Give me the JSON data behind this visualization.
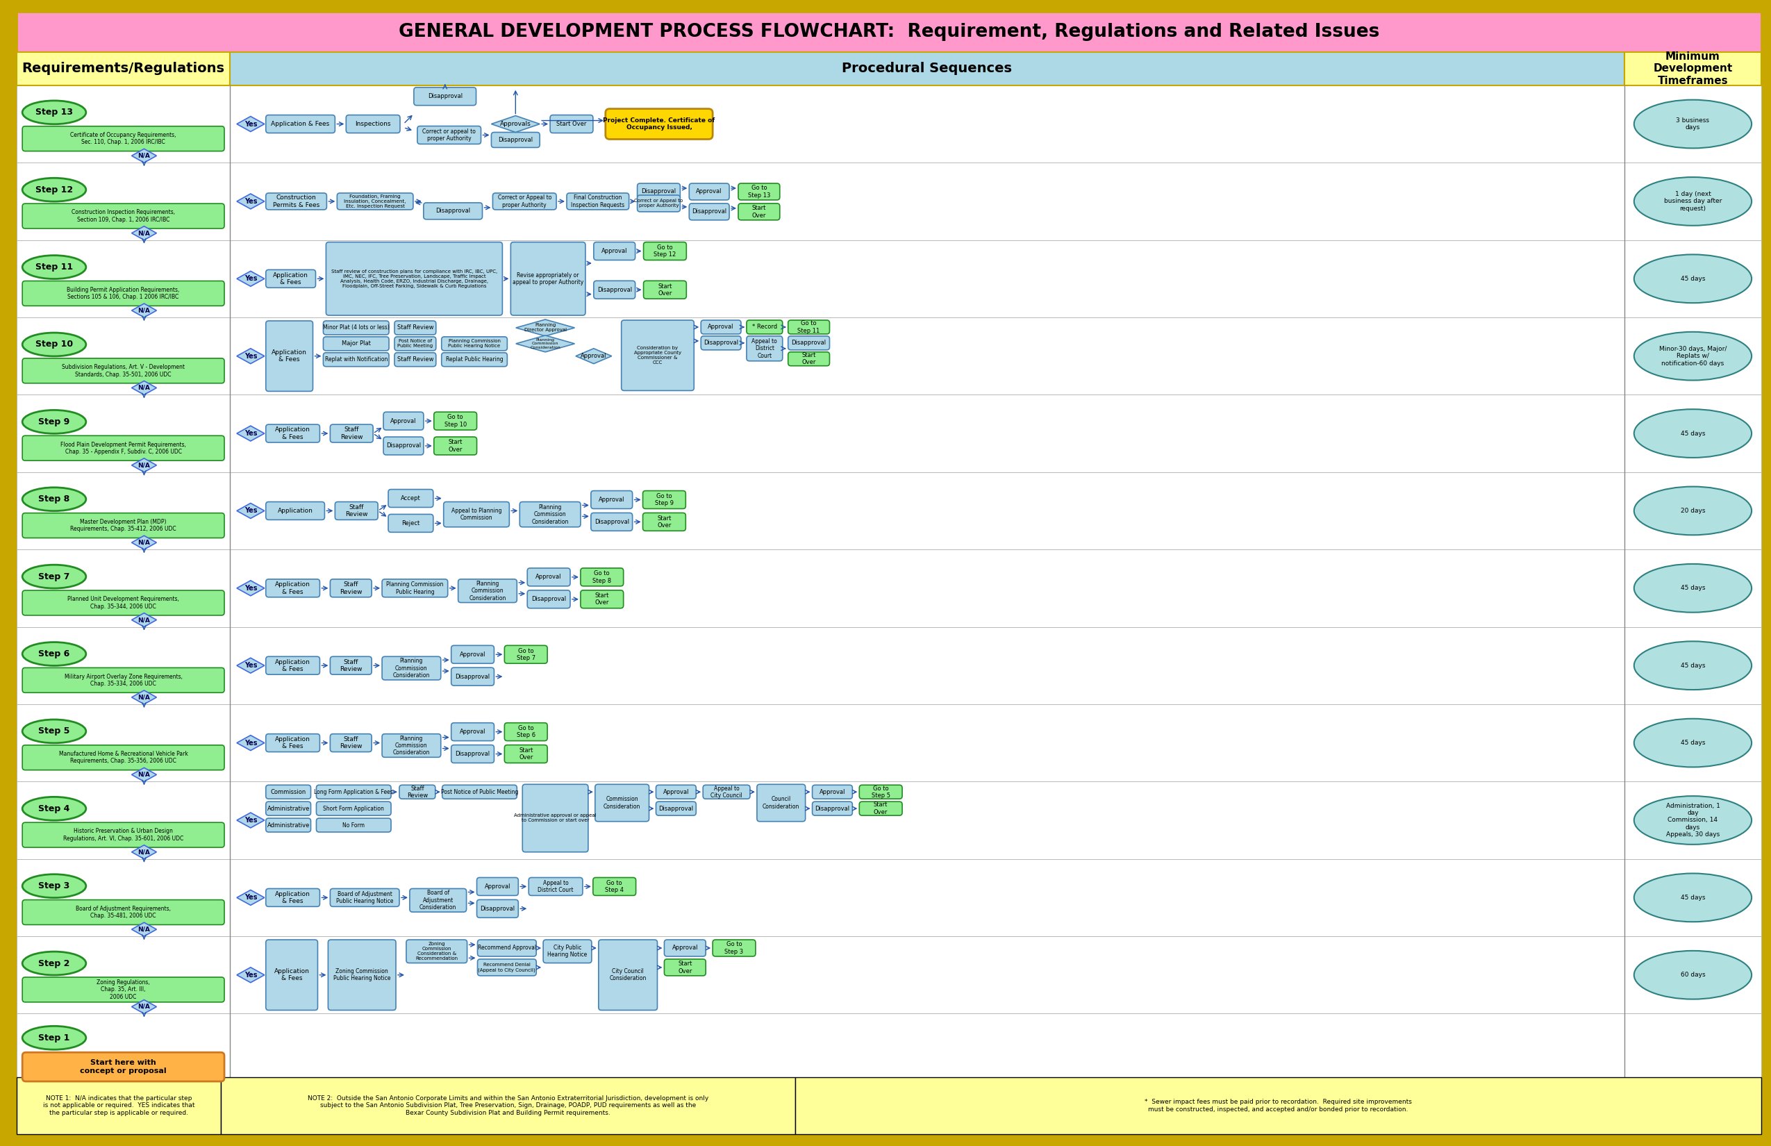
{
  "title": "GENERAL DEVELOPMENT PROCESS FLOWCHART:  Requirement, Regulations and Related Issues",
  "title_bg": "#FF99CC",
  "outer_border": "#C8A800",
  "header_bg_left": "#FFFF99",
  "header_bg_mid": "#ADD8E6",
  "header_bg_right": "#FFFF99",
  "col1_header": "Requirements/Regulations",
  "col2_header": "Procedural Sequences",
  "col3_header": "Minimum\nDevelopment\nTimeframes",
  "step_fill": "#90EE90",
  "step_border": "#228B22",
  "green_fill": "#90EE90",
  "green_border": "#228B22",
  "blue_fill": "#B0D8E8",
  "blue_border": "#4682B4",
  "req_fill": "#90EE90",
  "req_border": "#228B22",
  "orange_fill": "#FFB347",
  "orange_border": "#CC7722",
  "gold_fill": "#FFD700",
  "gold_border": "#B8860B",
  "time_fill": "#B0E0E0",
  "time_border": "#2F8080",
  "na_fill": "#B0D8E8",
  "na_border": "#4169E1",
  "yes_fill": "#B0D8E8",
  "yes_border": "#4169E1",
  "arrow_color": "#2255AA",
  "note_bg": "#FFFF99",
  "steps": [
    {
      "num": 13,
      "req": "Certificate of Occupancy Requirements,\nSec. 110, Chap. 1, 2006 IRC/IBC",
      "time": "3 business\ndays"
    },
    {
      "num": 12,
      "req": "Construction Inspection Requirements,\nSection 109, Chap. 1, 2006 IRC/IBC",
      "time": "1 day (next\nbusiness day after\nrequest)"
    },
    {
      "num": 11,
      "req": "Building Permit Application Requirements,\nSections 105 & 106, Chap. 1 2006 IRC/IBC",
      "time": "45 days"
    },
    {
      "num": 10,
      "req": "Subdivision Regulations, Art. V - Development\nStandards, Chap. 35-501, 2006 UDC",
      "time": "Minor-30 days, Major/\nReplats w/\nnotification-60 days"
    },
    {
      "num": 9,
      "req": "Flood Plain Development Permit Requirements,\nChap. 35 - Appendix F, Subdiv. C, 2006 UDC",
      "time": "45 days"
    },
    {
      "num": 8,
      "req": "Master Development Plan (MDP)\nRequirements, Chap. 35-412, 2006 UDC",
      "time": "20 days"
    },
    {
      "num": 7,
      "req": "Planned Unit Development Requirements,\nChap. 35-344, 2006 UDC",
      "time": "45 days"
    },
    {
      "num": 6,
      "req": "Military Airport Overlay Zone Requirements,\nChap. 35-334, 2006 UDC",
      "time": "45 days"
    },
    {
      "num": 5,
      "req": "Manufactured Home & Recreational Vehicle Park\nRequirements, Chap. 35-356, 2006 UDC",
      "time": "45 days"
    },
    {
      "num": 4,
      "req": "Historic Preservation & Urban Design\nRegulations, Art. VI, Chap. 35-601, 2006 UDC",
      "time": "Administration, 1\nday\nCommission, 14\ndays\nAppeals, 30 days"
    },
    {
      "num": 3,
      "req": "Board of Adjustment Requirements,\nChap. 35-481, 2006 UDC",
      "time": "45 days"
    },
    {
      "num": 2,
      "req": "Zoning Regulations,\nChap. 35, Art. III,\n2006 UDC",
      "time": "60 days"
    },
    {
      "num": 1,
      "req": "Start here with\nconcept or proposal",
      "time": ""
    }
  ],
  "note1_bold": "NOTE 1:  N/A",
  "note1": "NOTE 1:  N/A indicates that the particular step\nis not applicable or required.  YES indicates that\nthe particular step is applicable or required.",
  "note2": "NOTE 2:  Outside the San Antonio Corporate Limits and within the San Antonio Extraterritorial Jurisdiction, development is only\nsubject to the San Antonio Subdivision Plat, Tree Preservation, Sign, Drainage, POADP, PUD requirements as well as the\nBexar County Subdivision Plat and Building Permit requirements.",
  "note3": "*  Sewer impact fees must be paid prior to recordation.  Required site improvements\nmust be constructed, inspected, and accepted and/or bonded prior to recordation."
}
